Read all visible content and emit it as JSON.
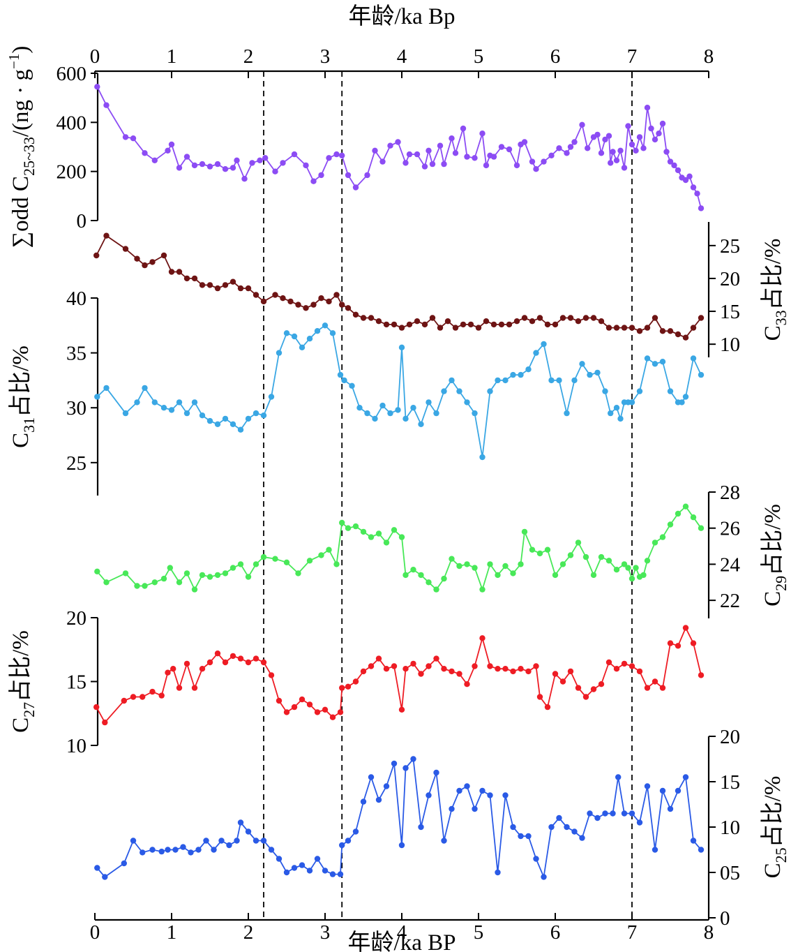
{
  "chart_data": {
    "type": "line",
    "x_axis": {
      "top_label": "年龄/ka Bp",
      "bottom_label": "年龄/ka BP",
      "range": [
        0,
        8
      ],
      "ticks": [
        0,
        1,
        2,
        3,
        4,
        5,
        6,
        7,
        8
      ]
    },
    "reference_lines": [
      2.2,
      3.22,
      7.0
    ],
    "panels": [
      {
        "name": "sum_odd",
        "ylabel_main": "∑odd C",
        "ylabel_sub": "25~33",
        "ylabel_tail": "/(ng · g",
        "ylabel_sup": "−1",
        "ylabel_end": ")",
        "side": "left",
        "ylim": [
          0,
          600
        ],
        "ticks": [
          0,
          200,
          400,
          600
        ],
        "color": "#8c4cf4",
        "x": [
          0.03,
          0.15,
          0.4,
          0.5,
          0.65,
          0.78,
          0.95,
          1.0,
          1.1,
          1.2,
          1.3,
          1.4,
          1.5,
          1.6,
          1.7,
          1.8,
          1.85,
          1.95,
          2.05,
          2.15,
          2.22,
          2.35,
          2.45,
          2.6,
          2.75,
          2.85,
          2.95,
          3.05,
          3.15,
          3.22,
          3.3,
          3.4,
          3.55,
          3.65,
          3.75,
          3.85,
          3.95,
          4.05,
          4.1,
          4.2,
          4.3,
          4.35,
          4.4,
          4.5,
          4.55,
          4.65,
          4.7,
          4.8,
          4.85,
          4.95,
          5.05,
          5.1,
          5.15,
          5.2,
          5.3,
          5.4,
          5.5,
          5.55,
          5.6,
          5.7,
          5.75,
          5.85,
          5.95,
          6.05,
          6.15,
          6.2,
          6.25,
          6.35,
          6.42,
          6.5,
          6.55,
          6.6,
          6.65,
          6.7,
          6.72,
          6.75,
          6.8,
          6.85,
          6.9,
          6.95,
          7.0,
          7.05,
          7.1,
          7.15,
          7.2,
          7.25,
          7.3,
          7.35,
          7.4,
          7.45,
          7.5,
          7.55,
          7.6,
          7.65,
          7.7,
          7.75,
          7.8,
          7.85,
          7.9
        ],
        "y": [
          545,
          470,
          340,
          335,
          275,
          245,
          285,
          310,
          215,
          260,
          225,
          230,
          220,
          230,
          210,
          215,
          245,
          170,
          235,
          245,
          255,
          200,
          235,
          270,
          225,
          160,
          185,
          255,
          270,
          265,
          185,
          135,
          185,
          285,
          240,
          305,
          320,
          235,
          270,
          270,
          220,
          285,
          230,
          305,
          230,
          335,
          275,
          375,
          260,
          255,
          355,
          225,
          265,
          260,
          300,
          290,
          225,
          310,
          320,
          240,
          210,
          240,
          265,
          295,
          275,
          300,
          320,
          390,
          295,
          340,
          350,
          275,
          330,
          345,
          235,
          280,
          245,
          285,
          215,
          385,
          310,
          285,
          340,
          295,
          460,
          375,
          330,
          355,
          395,
          280,
          240,
          225,
          205,
          175,
          165,
          180,
          135,
          110,
          50
        ]
      },
      {
        "name": "c33",
        "ylabel_main": "C",
        "ylabel_sub": "33",
        "ylabel_tail": "占比/%",
        "side": "right",
        "ylim": [
          8,
          27
        ],
        "ticks": [
          10,
          15,
          20,
          25
        ],
        "color": "#6e1414",
        "x": [
          0.02,
          0.15,
          0.4,
          0.55,
          0.65,
          0.75,
          0.9,
          1.0,
          1.1,
          1.2,
          1.3,
          1.4,
          1.5,
          1.6,
          1.7,
          1.8,
          1.9,
          2.0,
          2.1,
          2.2,
          2.35,
          2.45,
          2.55,
          2.65,
          2.75,
          2.85,
          2.95,
          3.05,
          3.15,
          3.22,
          3.3,
          3.4,
          3.5,
          3.6,
          3.7,
          3.8,
          3.9,
          4.0,
          4.1,
          4.2,
          4.3,
          4.4,
          4.5,
          4.6,
          4.7,
          4.8,
          4.9,
          5.0,
          5.1,
          5.2,
          5.3,
          5.4,
          5.5,
          5.6,
          5.7,
          5.8,
          5.9,
          6.0,
          6.1,
          6.2,
          6.3,
          6.4,
          6.5,
          6.6,
          6.7,
          6.8,
          6.9,
          7.0,
          7.1,
          7.2,
          7.3,
          7.4,
          7.5,
          7.6,
          7.7,
          7.8,
          7.9
        ],
        "y": [
          23.5,
          26.5,
          24.5,
          23,
          22,
          22.5,
          23.5,
          21,
          21,
          20,
          20,
          19,
          19,
          18.5,
          19,
          19.5,
          18.5,
          18.5,
          17.5,
          16.5,
          17.5,
          17,
          16.5,
          16,
          15.5,
          16,
          17,
          16.5,
          17.5,
          16,
          15.5,
          14.5,
          14,
          14,
          13.5,
          13,
          13,
          12.5,
          13,
          13.5,
          13,
          14,
          12.5,
          13.5,
          12.5,
          13,
          13,
          12.5,
          13.5,
          13,
          13,
          13,
          13.5,
          14,
          13.5,
          14,
          13,
          13,
          14,
          14,
          13.5,
          14,
          14,
          13.5,
          12.5,
          12.5,
          12.5,
          12.5,
          12,
          12.5,
          14,
          12,
          12,
          11.5,
          11,
          12.5,
          14
        ]
      },
      {
        "name": "c31",
        "ylabel_main": "C",
        "ylabel_sub": "31",
        "ylabel_tail": "占比/%",
        "side": "left",
        "ylim": [
          22,
          40
        ],
        "ticks": [
          25,
          30,
          35,
          40
        ],
        "color": "#3aa7e4",
        "x": [
          0.03,
          0.15,
          0.4,
          0.55,
          0.65,
          0.78,
          0.9,
          1.0,
          1.1,
          1.2,
          1.3,
          1.4,
          1.5,
          1.6,
          1.7,
          1.8,
          1.9,
          2.0,
          2.1,
          2.2,
          2.3,
          2.4,
          2.5,
          2.6,
          2.7,
          2.8,
          2.9,
          3.0,
          3.1,
          3.2,
          3.25,
          3.35,
          3.45,
          3.55,
          3.65,
          3.75,
          3.85,
          3.95,
          4.0,
          4.05,
          4.15,
          4.25,
          4.35,
          4.45,
          4.55,
          4.65,
          4.75,
          4.85,
          4.95,
          5.05,
          5.15,
          5.25,
          5.35,
          5.45,
          5.55,
          5.65,
          5.75,
          5.85,
          5.95,
          6.05,
          6.15,
          6.25,
          6.35,
          6.45,
          6.55,
          6.65,
          6.72,
          6.8,
          6.85,
          6.9,
          6.95,
          7.0,
          7.1,
          7.2,
          7.3,
          7.4,
          7.5,
          7.6,
          7.65,
          7.7,
          7.8,
          7.9
        ],
        "y": [
          31,
          31.8,
          29.5,
          30.5,
          31.8,
          30.5,
          30,
          29.8,
          30.5,
          29.5,
          30.5,
          29.3,
          28.8,
          28.5,
          29,
          28.5,
          28,
          29,
          29.5,
          29.3,
          31,
          35,
          36.8,
          36.5,
          35.5,
          36.3,
          37,
          37.5,
          36.8,
          33,
          32.5,
          32,
          30,
          29.5,
          29,
          30.2,
          29.5,
          29.8,
          35.5,
          29,
          30,
          28.5,
          30.5,
          29.5,
          31.5,
          32.5,
          31.5,
          30.5,
          29.5,
          25.5,
          31.5,
          32.5,
          32.5,
          33,
          33,
          33.5,
          35,
          35.8,
          32.5,
          32.5,
          29.5,
          32.5,
          34,
          33,
          33.2,
          31.5,
          29.5,
          30,
          29,
          30.5,
          30.5,
          30.5,
          31.5,
          34.5,
          34,
          34.2,
          31.5,
          30.5,
          30.5,
          31,
          34.5,
          33
        ]
      },
      {
        "name": "c29",
        "ylabel_main": "C",
        "ylabel_sub": "29",
        "ylabel_tail": "占比/%",
        "side": "right",
        "ylim": [
          21,
          28
        ],
        "ticks": [
          22,
          24,
          26,
          28
        ],
        "color": "#48e858",
        "x": [
          0.03,
          0.15,
          0.4,
          0.55,
          0.65,
          0.78,
          0.9,
          0.98,
          1.1,
          1.2,
          1.3,
          1.4,
          1.5,
          1.6,
          1.7,
          1.8,
          1.9,
          2.0,
          2.1,
          2.2,
          2.35,
          2.5,
          2.65,
          2.8,
          2.95,
          3.05,
          3.15,
          3.22,
          3.3,
          3.4,
          3.5,
          3.6,
          3.7,
          3.8,
          3.9,
          4.0,
          4.05,
          4.15,
          4.25,
          4.35,
          4.45,
          4.55,
          4.65,
          4.75,
          4.85,
          4.95,
          5.05,
          5.15,
          5.25,
          5.35,
          5.45,
          5.55,
          5.6,
          5.7,
          5.8,
          5.9,
          6.0,
          6.1,
          6.2,
          6.3,
          6.4,
          6.5,
          6.6,
          6.7,
          6.8,
          6.9,
          6.95,
          7.0,
          7.05,
          7.1,
          7.15,
          7.2,
          7.3,
          7.4,
          7.5,
          7.6,
          7.7,
          7.8,
          7.9
        ],
        "y": [
          23.6,
          23,
          23.5,
          22.8,
          22.8,
          23,
          23.2,
          23.8,
          23,
          23.5,
          22.6,
          23.4,
          23.3,
          23.4,
          23.5,
          23.8,
          24,
          23.3,
          24,
          24.4,
          24.3,
          24.1,
          23.5,
          24.2,
          24.5,
          24.8,
          24,
          26.3,
          26,
          26.1,
          25.8,
          25.5,
          25.7,
          25.2,
          25.9,
          25.5,
          23.4,
          23.7,
          23.4,
          23,
          22.6,
          23.2,
          24.3,
          23.9,
          24,
          23.8,
          22.6,
          24,
          23.4,
          23.9,
          23.5,
          24,
          25.8,
          24.8,
          24.6,
          24.8,
          23.4,
          24,
          24.5,
          25.2,
          24.4,
          23.4,
          24.4,
          24.2,
          23.7,
          24,
          23.8,
          23.2,
          23.8,
          23.3,
          23.4,
          24.2,
          25.2,
          25.5,
          26.2,
          26.8,
          27.2,
          26.6,
          26
        ]
      },
      {
        "name": "c27",
        "ylabel_main": "C",
        "ylabel_sub": "27",
        "ylabel_tail": "占比/%",
        "side": "left",
        "ylim": [
          10,
          20
        ],
        "ticks": [
          10,
          15,
          20
        ],
        "color": "#ee1c24",
        "x": [
          0.02,
          0.13,
          0.38,
          0.5,
          0.62,
          0.75,
          0.87,
          0.95,
          1.02,
          1.1,
          1.2,
          1.3,
          1.4,
          1.5,
          1.6,
          1.7,
          1.8,
          1.9,
          2.0,
          2.1,
          2.2,
          2.3,
          2.4,
          2.5,
          2.6,
          2.7,
          2.8,
          2.9,
          3.0,
          3.1,
          3.2,
          3.22,
          3.3,
          3.4,
          3.5,
          3.6,
          3.7,
          3.8,
          3.9,
          4.0,
          4.05,
          4.15,
          4.25,
          4.35,
          4.45,
          4.55,
          4.65,
          4.75,
          4.85,
          4.95,
          5.05,
          5.15,
          5.25,
          5.35,
          5.45,
          5.55,
          5.65,
          5.75,
          5.8,
          5.9,
          6.0,
          6.1,
          6.2,
          6.3,
          6.4,
          6.5,
          6.6,
          6.7,
          6.8,
          6.9,
          7.0,
          7.1,
          7.2,
          7.3,
          7.4,
          7.5,
          7.6,
          7.7,
          7.8,
          7.9
        ],
        "y": [
          13,
          11.8,
          13.5,
          13.8,
          13.8,
          14.2,
          13.9,
          15.7,
          16,
          14.5,
          16.4,
          14.5,
          16,
          16.5,
          17.2,
          16.5,
          17,
          16.8,
          16.5,
          16.8,
          16.5,
          15.5,
          13.5,
          12.6,
          13,
          13.6,
          13.2,
          12.6,
          12.8,
          12.2,
          12.6,
          14.5,
          14.6,
          15,
          15.8,
          16.2,
          16.8,
          16,
          16.2,
          12.8,
          16,
          16.4,
          15.6,
          16.2,
          16.8,
          16,
          15.8,
          15.6,
          14.8,
          16.2,
          18.4,
          16.2,
          16,
          16,
          15.8,
          16,
          15.8,
          16.2,
          13.8,
          13,
          15.6,
          15,
          15.8,
          14.5,
          13.8,
          14.4,
          14.8,
          16.5,
          16,
          16.4,
          16.2,
          15.8,
          14.5,
          15,
          14.5,
          18,
          17.8,
          19.2,
          18,
          15.5
        ]
      },
      {
        "name": "c25",
        "ylabel_main": "C",
        "ylabel_sub": "25",
        "ylabel_tail": "占比/%",
        "side": "right",
        "ylim": [
          0,
          20
        ],
        "ticks": [
          0,
          5,
          10,
          15,
          20
        ],
        "tick_labels": [
          "0",
          "05",
          "10",
          "15",
          "20"
        ],
        "color": "#2a5ae6",
        "x": [
          0.03,
          0.13,
          0.38,
          0.5,
          0.62,
          0.75,
          0.87,
          0.95,
          1.05,
          1.15,
          1.25,
          1.35,
          1.45,
          1.55,
          1.65,
          1.75,
          1.85,
          1.9,
          2.0,
          2.1,
          2.2,
          2.3,
          2.4,
          2.5,
          2.6,
          2.7,
          2.8,
          2.9,
          3.0,
          3.1,
          3.2,
          3.22,
          3.3,
          3.4,
          3.5,
          3.6,
          3.7,
          3.8,
          3.9,
          4.0,
          4.05,
          4.15,
          4.25,
          4.35,
          4.45,
          4.55,
          4.65,
          4.75,
          4.85,
          4.95,
          5.05,
          5.15,
          5.25,
          5.35,
          5.45,
          5.55,
          5.65,
          5.75,
          5.85,
          5.95,
          6.05,
          6.15,
          6.25,
          6.35,
          6.45,
          6.55,
          6.65,
          6.75,
          6.82,
          6.9,
          7.0,
          7.1,
          7.2,
          7.3,
          7.4,
          7.5,
          7.6,
          7.7,
          7.8,
          7.9
        ],
        "y": [
          5.5,
          4.5,
          6,
          8.5,
          7.2,
          7.5,
          7.3,
          7.5,
          7.5,
          7.8,
          7.2,
          7.5,
          8.5,
          7.5,
          8.5,
          8,
          8.5,
          10.5,
          9.5,
          8.5,
          8.5,
          7.5,
          6.5,
          5,
          5.5,
          5.8,
          5.2,
          6.5,
          5.2,
          4.8,
          4.8,
          8,
          8.5,
          9.5,
          12.8,
          15.5,
          13,
          14.5,
          17,
          8,
          16.5,
          17.5,
          10,
          13.5,
          16,
          8.5,
          12,
          14,
          14.5,
          12,
          14,
          13.5,
          5,
          13.5,
          10,
          9,
          9,
          6.5,
          4.5,
          10,
          11,
          10,
          9.5,
          8.8,
          11.5,
          11,
          11.5,
          11.5,
          15.5,
          11.5,
          11.5,
          10.5,
          14.5,
          7.5,
          14,
          12,
          14,
          15.5,
          8.5,
          7.5
        ]
      }
    ]
  }
}
